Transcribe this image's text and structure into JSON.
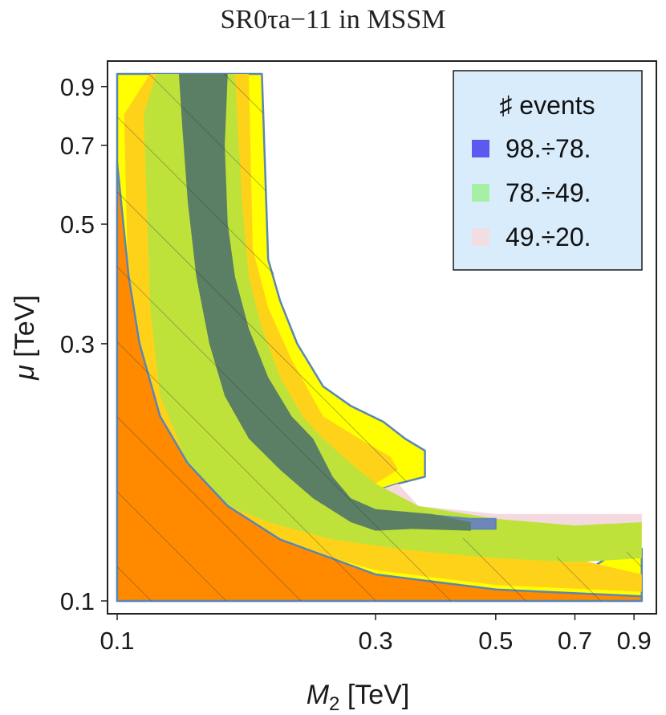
{
  "chart_data": {
    "type": "contour",
    "title": "SR0τa−11 in MSSM",
    "xlabel_main": "M",
    "xlabel_sub": "2",
    "xlabel_unit": " [TeV]",
    "ylabel_main": "μ",
    "ylabel_unit": " [TeV]",
    "x_scale": "log",
    "y_scale": "log",
    "xlim": [
      0.1,
      0.95
    ],
    "ylim": [
      0.1,
      0.95
    ],
    "x_ticks": [
      {
        "value": 0.1,
        "label": "0.1"
      },
      {
        "value": 0.3,
        "label": "0.3"
      },
      {
        "value": 0.5,
        "label": "0.5"
      },
      {
        "value": 0.7,
        "label": "0.7"
      },
      {
        "value": 0.9,
        "label": "0.9"
      }
    ],
    "y_ticks": [
      {
        "value": 0.1,
        "label": "0.1"
      },
      {
        "value": 0.3,
        "label": "0.3"
      },
      {
        "value": 0.5,
        "label": "0.5"
      },
      {
        "value": 0.7,
        "label": "0.7"
      },
      {
        "value": 0.9,
        "label": "0.9"
      }
    ],
    "legend": {
      "title": "♯ events",
      "position": "top-right",
      "entries": [
        {
          "label": "98.÷78.",
          "color": "#5a5af0"
        },
        {
          "label": "78.÷49.",
          "color": "#a6f0a6"
        },
        {
          "label": "49.÷20.",
          "color": "#f2dde2"
        }
      ]
    },
    "excluded_region": {
      "color": "#ff8a00",
      "boundary": [
        [
          0.1,
          0.65
        ],
        [
          0.105,
          0.4
        ],
        [
          0.11,
          0.3
        ],
        [
          0.12,
          0.22
        ],
        [
          0.135,
          0.18
        ],
        [
          0.16,
          0.15
        ],
        [
          0.2,
          0.13
        ],
        [
          0.3,
          0.112
        ],
        [
          0.5,
          0.105
        ],
        [
          0.93,
          0.102
        ]
      ]
    },
    "colors": {
      "outer_band": "#ffff00",
      "inner_band": "#ffd21a",
      "green_band": "#bfe23a",
      "core_band": "#5b7f64",
      "blue_band": "#6f87b8",
      "pink_band": "#f4d9e0",
      "contour_line": "#5b86b3",
      "legend_bg": "#d9ecfb",
      "legend_border": "#1a1a1a"
    }
  }
}
